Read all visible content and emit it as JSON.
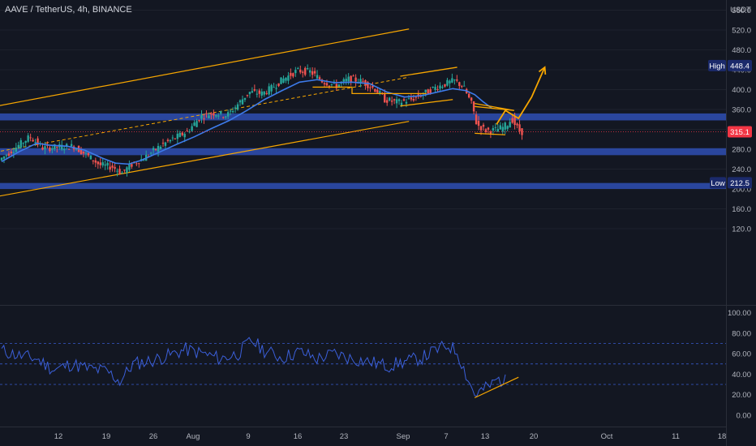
{
  "header": {
    "title": "AAVE / TetherUS, 4h, BINANCE"
  },
  "colors": {
    "background": "#131722",
    "grid": "#1e222d",
    "up_candle": "#26a69a",
    "down_candle": "#ef5350",
    "zone": "#2f4fb3",
    "channel": "#f7a600",
    "ema": "#3d7bea",
    "rsi": "#3b5fd9",
    "price_tag": "#f23645",
    "label_tag": "#1b2a6b"
  },
  "chart_data": [
    {
      "type": "candlestick",
      "symbol": "AAVE / TetherUS",
      "interval": "4h",
      "exchange": "BINANCE",
      "y_unit": "USDT",
      "y_ticks": [
        "120.0",
        "160.0",
        "200.0",
        "240.0",
        "280.0",
        "320.0",
        "360.0",
        "400.0",
        "440.0",
        "480.0",
        "520.0",
        "560.0"
      ],
      "x_ticks": [
        "12",
        "19",
        "26",
        "Aug",
        "9",
        "16",
        "23",
        "Sep",
        "7",
        "13",
        "20",
        "Oct",
        "11",
        "18"
      ],
      "markers": {
        "high": "448.4",
        "low": "212.5",
        "last": "315.1",
        "high_label": "High",
        "low_label": "Low"
      },
      "price_path": [
        [
          0,
          258
        ],
        [
          4,
          285
        ],
        [
          7,
          305
        ],
        [
          10,
          282
        ],
        [
          13,
          284
        ],
        [
          17,
          286
        ],
        [
          20,
          268
        ],
        [
          23,
          248
        ],
        [
          26,
          244
        ],
        [
          28,
          232
        ],
        [
          30,
          248
        ],
        [
          33,
          262
        ],
        [
          37,
          288
        ],
        [
          40,
          302
        ],
        [
          43,
          316
        ],
        [
          46,
          346
        ],
        [
          49,
          353
        ],
        [
          52,
          348
        ],
        [
          54,
          366
        ],
        [
          57,
          395
        ],
        [
          60,
          392
        ],
        [
          62,
          402
        ],
        [
          65,
          422
        ],
        [
          68,
          438
        ],
        [
          71,
          436
        ],
        [
          74,
          416
        ],
        [
          77,
          408
        ],
        [
          80,
          422
        ],
        [
          83,
          416
        ],
        [
          86,
          400
        ],
        [
          88,
          380
        ],
        [
          91,
          374
        ],
        [
          94,
          380
        ],
        [
          97,
          392
        ],
        [
          99,
          402
        ],
        [
          102,
          412
        ],
        [
          104,
          418
        ],
        [
          106,
          405
        ],
        [
          108,
          368
        ],
        [
          109,
          330
        ],
        [
          111,
          318
        ],
        [
          113,
          318
        ],
        [
          115,
          324
        ],
        [
          116,
          330
        ],
        [
          117,
          342
        ],
        [
          118,
          326
        ],
        [
          119,
          315
        ]
      ],
      "ema_path": [
        [
          0,
          255
        ],
        [
          4,
          275
        ],
        [
          8,
          292
        ],
        [
          11,
          288
        ],
        [
          15,
          286
        ],
        [
          19,
          278
        ],
        [
          23,
          262
        ],
        [
          26,
          252
        ],
        [
          29,
          250
        ],
        [
          32,
          258
        ],
        [
          36,
          274
        ],
        [
          40,
          290
        ],
        [
          44,
          305
        ],
        [
          48,
          322
        ],
        [
          52,
          338
        ],
        [
          56,
          358
        ],
        [
          60,
          380
        ],
        [
          64,
          398
        ],
        [
          68,
          415
        ],
        [
          72,
          420
        ],
        [
          76,
          414
        ],
        [
          80,
          415
        ],
        [
          84,
          412
        ],
        [
          88,
          395
        ],
        [
          92,
          385
        ],
        [
          96,
          388
        ],
        [
          100,
          396
        ],
        [
          103,
          402
        ],
        [
          106,
          398
        ],
        [
          108,
          390
        ],
        [
          110,
          375
        ],
        [
          112,
          362
        ]
      ],
      "zones_price": [
        [
          338,
          352
        ],
        [
          268,
          282
        ],
        [
          200,
          212
        ]
      ],
      "channel": {
        "upper": [
          [
            -4,
            362
          ],
          [
            93,
            522
          ]
        ],
        "middle": [
          [
            -4,
            270
          ],
          [
            93,
            425
          ]
        ],
        "lower": [
          [
            -4,
            180
          ],
          [
            93,
            336
          ]
        ]
      },
      "patterns": [
        {
          "kind": "segment",
          "points": [
            [
              91,
              427
            ],
            [
              104,
              445
            ]
          ]
        },
        {
          "kind": "segment",
          "points": [
            [
              91,
              367
            ],
            [
              103,
              380
            ]
          ]
        },
        {
          "kind": "segment",
          "points": [
            [
              108,
              312
            ],
            [
              115,
              309
            ]
          ]
        },
        {
          "kind": "segment",
          "points": [
            [
              108,
              372
            ],
            [
              117,
              358
            ]
          ]
        },
        {
          "kind": "segment",
          "points": [
            [
              117,
              358
            ],
            [
              108,
              366
            ]
          ]
        },
        {
          "kind": "polyline",
          "points": [
            [
              71,
              405
            ],
            [
              80,
              405
            ],
            [
              80,
              392
            ],
            [
              97,
              392
            ]
          ]
        }
      ],
      "projection": [
        [
          113,
          330
        ],
        [
          115,
          358
        ],
        [
          118,
          342
        ],
        [
          121,
          385
        ],
        [
          124,
          445
        ]
      ],
      "lower_pane": {
        "type": "line",
        "y_ticks": [
          "0.00",
          "20.00",
          "40.00",
          "60.00",
          "80.00",
          "100.00"
        ],
        "ylim": [
          -10,
          105
        ],
        "levels": [
          70,
          50,
          30
        ],
        "series_approx": [
          [
            0,
            63
          ],
          [
            4,
            58
          ],
          [
            8,
            55
          ],
          [
            12,
            44
          ],
          [
            16,
            50
          ],
          [
            20,
            45
          ],
          [
            24,
            43
          ],
          [
            27,
            33
          ],
          [
            30,
            50
          ],
          [
            34,
            53
          ],
          [
            38,
            58
          ],
          [
            42,
            64
          ],
          [
            46,
            60
          ],
          [
            50,
            55
          ],
          [
            54,
            60
          ],
          [
            57,
            73
          ],
          [
            60,
            63
          ],
          [
            64,
            56
          ],
          [
            68,
            62
          ],
          [
            72,
            55
          ],
          [
            76,
            60
          ],
          [
            80,
            55
          ],
          [
            84,
            52
          ],
          [
            88,
            48
          ],
          [
            92,
            52
          ],
          [
            96,
            56
          ],
          [
            99,
            63
          ],
          [
            102,
            68
          ],
          [
            104,
            62
          ],
          [
            106,
            40
          ],
          [
            108,
            20
          ],
          [
            110,
            25
          ],
          [
            112,
            30
          ],
          [
            113,
            35
          ],
          [
            115,
            33
          ]
        ],
        "trendline": [
          [
            108,
            17
          ],
          [
            118,
            37
          ]
        ]
      }
    }
  ]
}
